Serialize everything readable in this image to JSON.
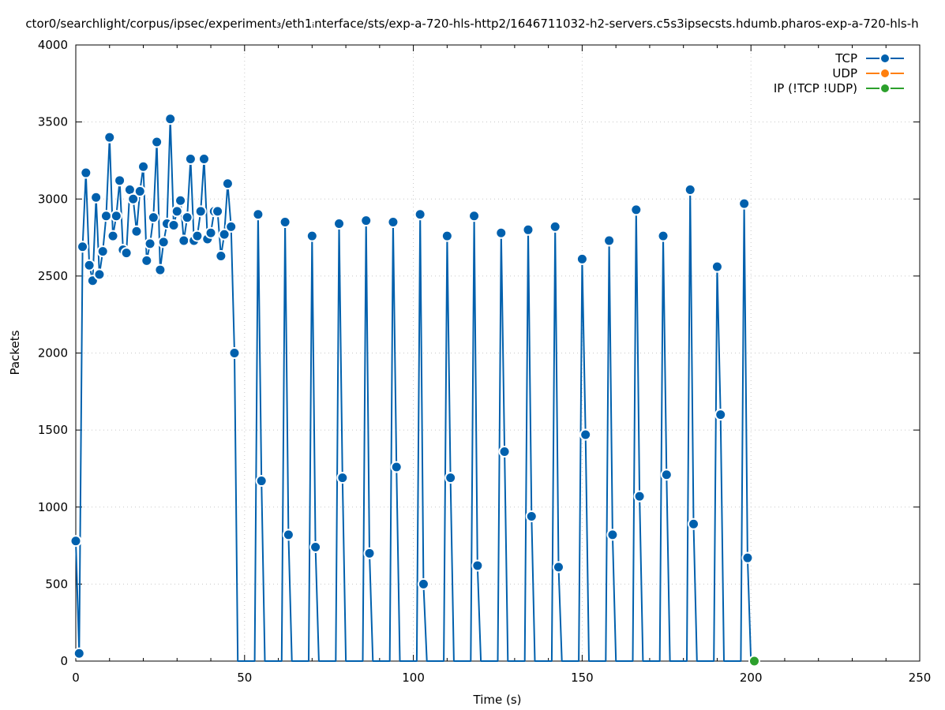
{
  "chart_data": {
    "type": "line",
    "title": "ctor0/searchlight/corpus/ipsec/experiment₃/eth1ᵢnterface/sts/exp-a-720-hls-http2/1646711032-h2-servers.c5s3ipsecsts.hdumb.pharos-exp-a-720-hls-h",
    "xlabel": "Time (s)",
    "ylabel": "Packets",
    "xlim": [
      0,
      250
    ],
    "ylim": [
      0,
      4000
    ],
    "xticks": [
      0,
      50,
      100,
      150,
      200,
      250
    ],
    "yticks": [
      0,
      500,
      1000,
      1500,
      2000,
      2500,
      3000,
      3500,
      4000
    ],
    "grid": true,
    "legend_position": "top-right",
    "series": [
      {
        "name": "TCP",
        "color": "#0060ad",
        "x": [
          0,
          1,
          2,
          3,
          4,
          5,
          6,
          7,
          8,
          9,
          10,
          11,
          12,
          13,
          14,
          15,
          16,
          17,
          18,
          19,
          20,
          21,
          22,
          23,
          24,
          25,
          26,
          27,
          28,
          29,
          30,
          31,
          32,
          33,
          34,
          35,
          36,
          37,
          38,
          39,
          40,
          41,
          42,
          43,
          44,
          45,
          46,
          47,
          48,
          49,
          50,
          51,
          52,
          53,
          54,
          55,
          56,
          57,
          58,
          59,
          60,
          61,
          62,
          63,
          64,
          65,
          66,
          67,
          68,
          69,
          70,
          71,
          72,
          73,
          74,
          75,
          76,
          77,
          78,
          79,
          80,
          81,
          82,
          83,
          84,
          85,
          86,
          87,
          88,
          89,
          90,
          91,
          92,
          93,
          94,
          95,
          96,
          97,
          98,
          99,
          100,
          101,
          102,
          103,
          104,
          105,
          106,
          107,
          108,
          109,
          110,
          111,
          112,
          113,
          114,
          115,
          116,
          117,
          118,
          119,
          120,
          121,
          122,
          123,
          124,
          125,
          126,
          127,
          128,
          129,
          130,
          131,
          132,
          133,
          134,
          135,
          136,
          137,
          138,
          139,
          140,
          141,
          142,
          143,
          144,
          145,
          146,
          147,
          148,
          149,
          150,
          151,
          152,
          153,
          154,
          155,
          156,
          157,
          158,
          159,
          160,
          161,
          162,
          163,
          164,
          165,
          166,
          167,
          168,
          169,
          170,
          171,
          172,
          173,
          174,
          175,
          176,
          177,
          178,
          179,
          180,
          181,
          182,
          183,
          184,
          185,
          186,
          187,
          188,
          189,
          190,
          191,
          192,
          193,
          194,
          195,
          196,
          197,
          198,
          199,
          200
        ],
        "y": [
          780,
          50,
          2690,
          3170,
          2570,
          2470,
          3010,
          2510,
          2660,
          2890,
          3400,
          2760,
          2890,
          3120,
          2670,
          2650,
          3060,
          3000,
          2790,
          3050,
          3210,
          2600,
          2710,
          2880,
          3370,
          2540,
          2720,
          2840,
          3520,
          2830,
          2920,
          2990,
          2730,
          2880,
          3260,
          2730,
          2760,
          2920,
          3260,
          2740,
          2780,
          2920,
          2920,
          2630,
          2770,
          3100,
          2820,
          2000,
          0,
          0,
          0,
          0,
          0,
          0,
          2900,
          1170,
          0,
          0,
          0,
          0,
          0,
          0,
          2850,
          820,
          0,
          0,
          0,
          0,
          0,
          0,
          2760,
          740,
          0,
          0,
          0,
          0,
          0,
          0,
          2840,
          1190,
          0,
          0,
          0,
          0,
          0,
          0,
          2860,
          700,
          0,
          0,
          0,
          0,
          0,
          0,
          2850,
          1260,
          0,
          0,
          0,
          0,
          0,
          0,
          2900,
          500,
          0,
          0,
          0,
          0,
          0,
          0,
          2760,
          1190,
          0,
          0,
          0,
          0,
          0,
          0,
          2890,
          620,
          0,
          0,
          0,
          0,
          0,
          0,
          2780,
          1360,
          0,
          0,
          0,
          0,
          0,
          0,
          2800,
          940,
          0,
          0,
          0,
          0,
          0,
          0,
          2820,
          610,
          0,
          0,
          0,
          0,
          0,
          0,
          2610,
          1470,
          0,
          0,
          0,
          0,
          0,
          0,
          2730,
          820,
          0,
          0,
          0,
          0,
          0,
          0,
          2930,
          1070,
          0,
          0,
          0,
          0,
          0,
          0,
          2760,
          1210,
          0,
          0,
          0,
          0,
          0,
          0,
          3060,
          890,
          0,
          0,
          0,
          0,
          0,
          0,
          2560,
          1600,
          0,
          0,
          0,
          0,
          0,
          0,
          2970,
          670,
          0
        ]
      },
      {
        "name": "UDP",
        "color": "#ff7f0e",
        "x": [],
        "y": []
      },
      {
        "name": "IP (!TCP  !UDP)",
        "color": "#2ca02c",
        "x": [
          201
        ],
        "y": [
          0
        ]
      }
    ]
  }
}
